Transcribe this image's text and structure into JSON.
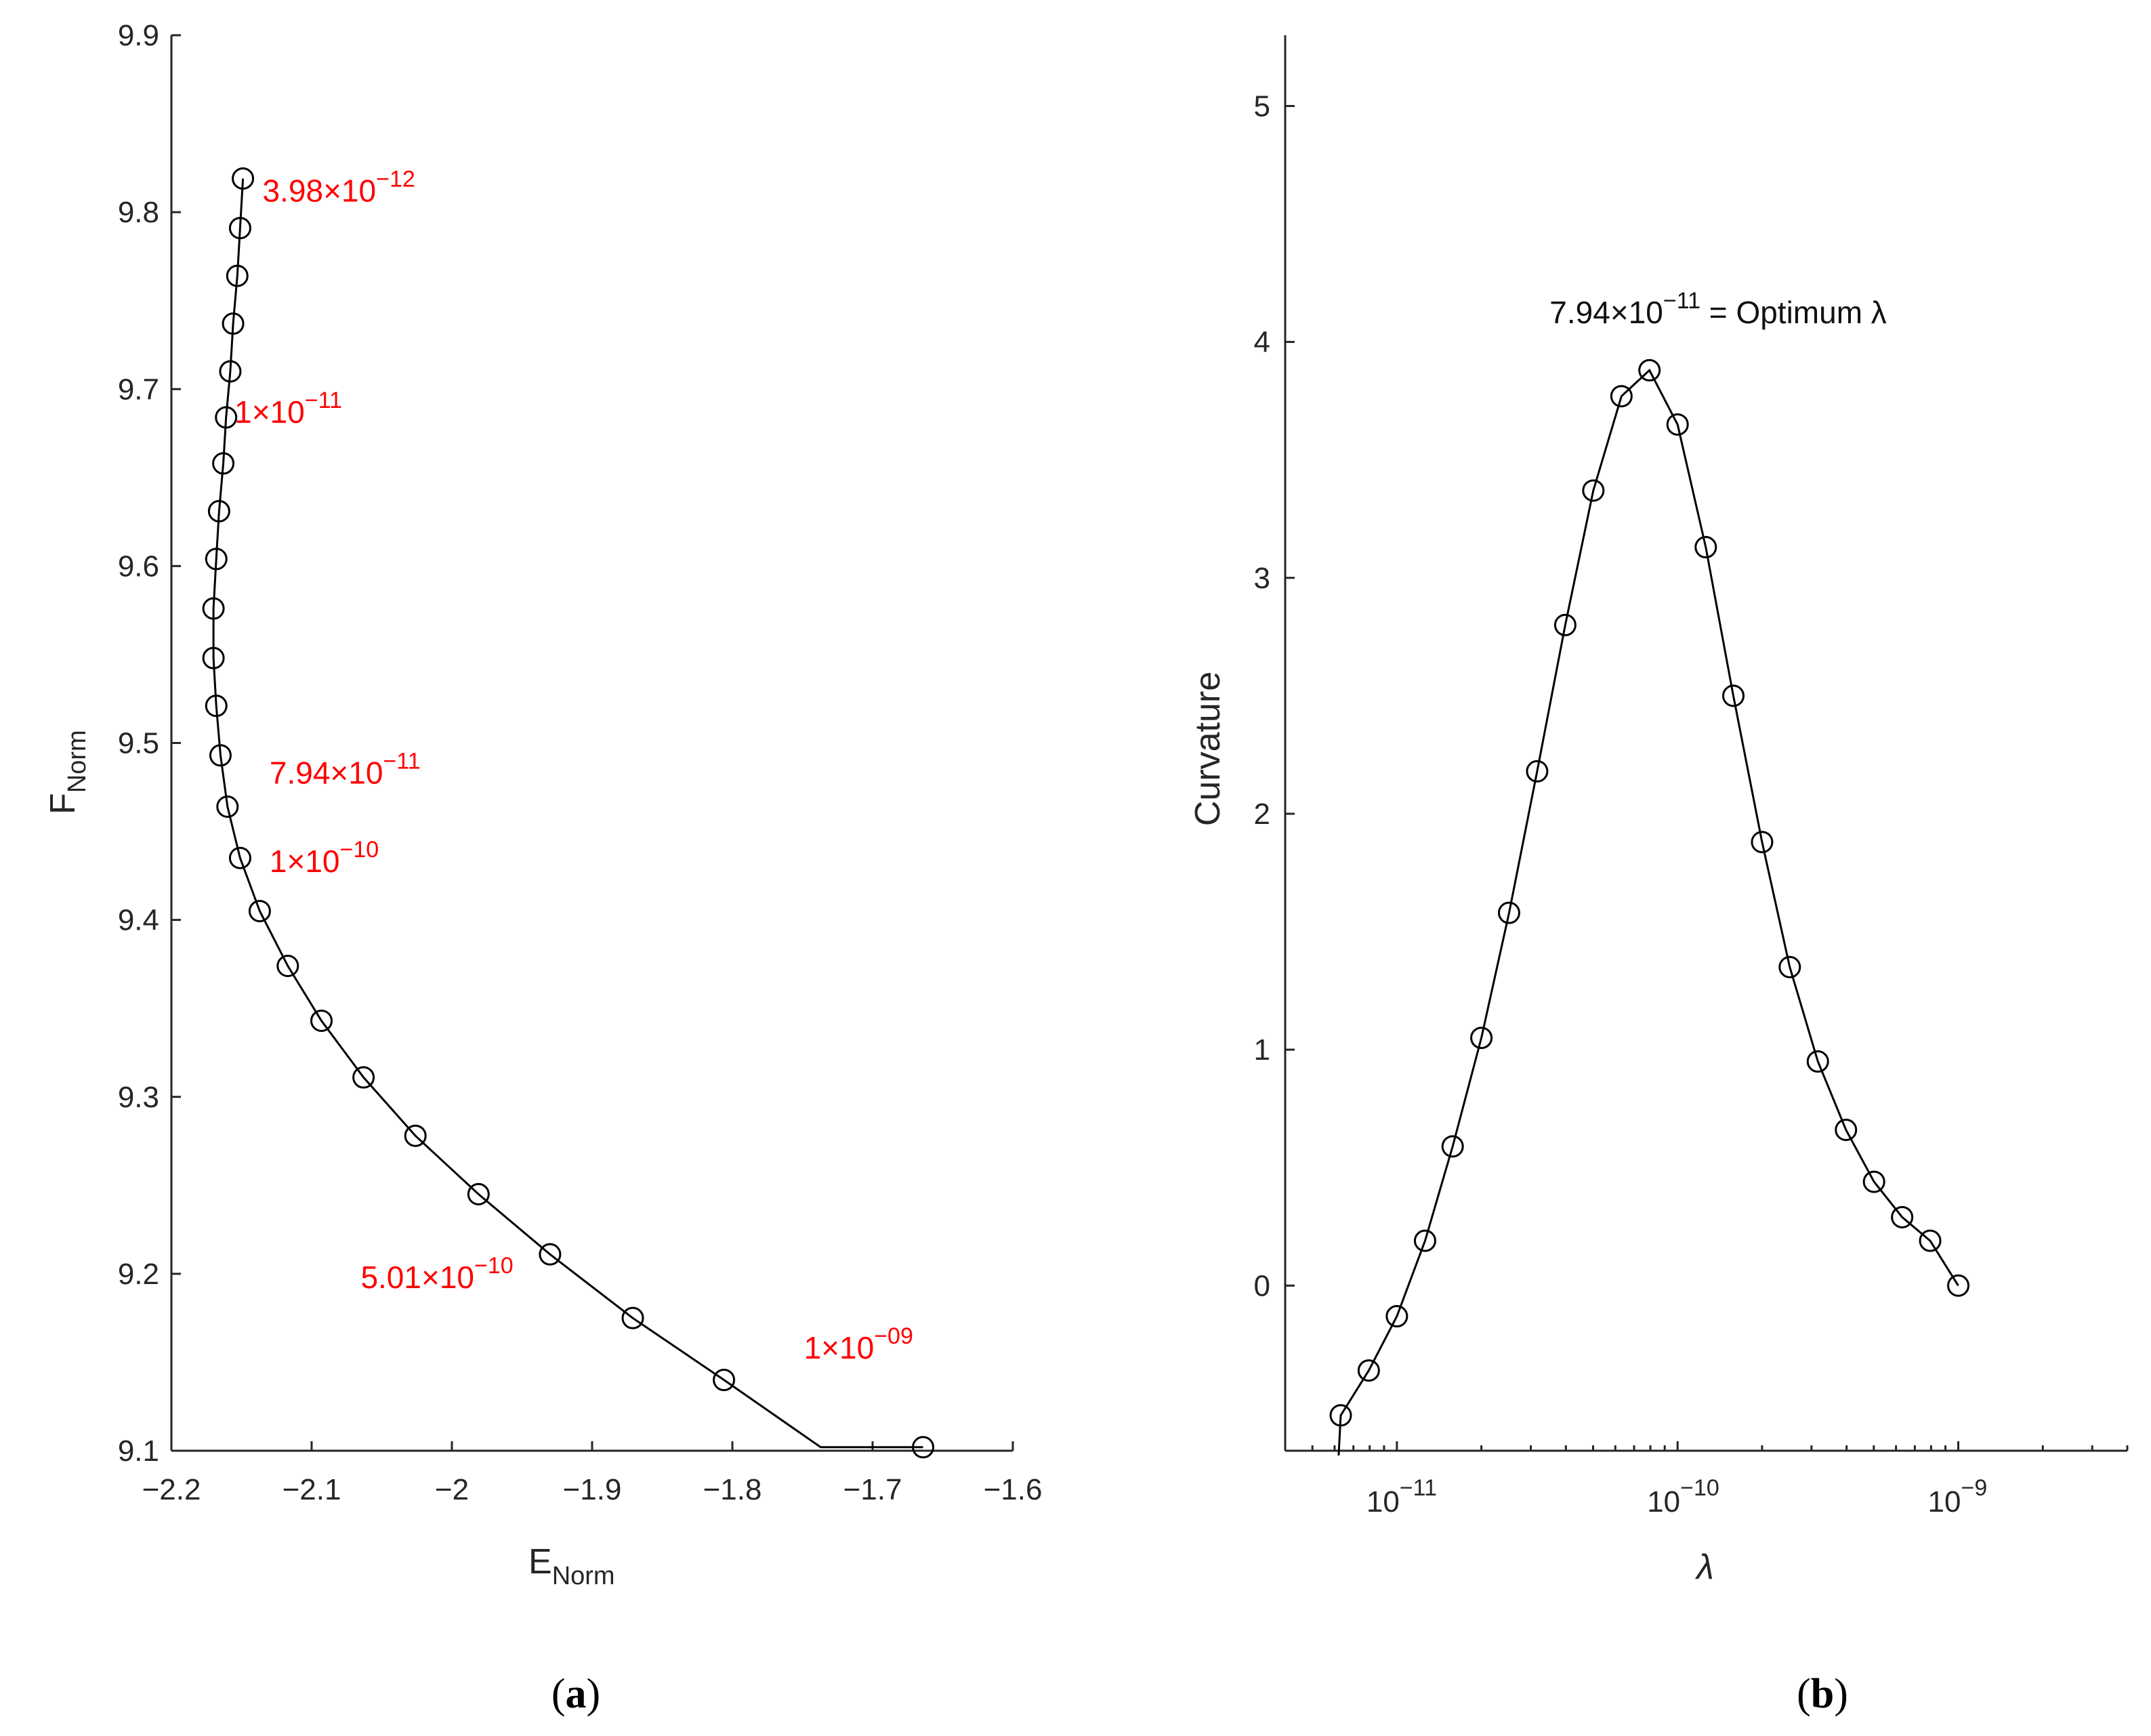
{
  "chart_data": [
    {
      "type": "line",
      "panel_label": "a",
      "xlabel": "E",
      "xlabel_sub": "Norm",
      "ylabel": "F",
      "ylabel_sub": "Norm",
      "xlim": [
        -2.2,
        -1.6
      ],
      "ylim": [
        9.1,
        9.9
      ],
      "xticks": [
        -2.2,
        -2.1,
        -2,
        -1.9,
        -1.8,
        -1.7,
        -1.6
      ],
      "xtick_labels": [
        "−2.2",
        "−2.1",
        "−2",
        "−1.9",
        "−1.8",
        "−1.7",
        "−1.6"
      ],
      "yticks": [
        9.1,
        9.2,
        9.3,
        9.4,
        9.5,
        9.6,
        9.7,
        9.8,
        9.9
      ],
      "ytick_labels": [
        "9.1",
        "9.2",
        "9.3",
        "9.4",
        "9.5",
        "9.6",
        "9.7",
        "9.8",
        "9.9"
      ],
      "x": [
        -2.149,
        -2.151,
        -2.153,
        -2.156,
        -2.158,
        -2.161,
        -2.163,
        -2.166,
        -2.168,
        -2.17,
        -2.17,
        -2.168,
        -2.165,
        -2.16,
        -2.151,
        -2.137,
        -2.117,
        -2.093,
        -2.063,
        -2.026,
        -1.981,
        -1.93,
        -1.871,
        -1.806,
        -1.737,
        -1.664
      ],
      "y": [
        9.819,
        9.791,
        9.764,
        9.737,
        9.71,
        9.684,
        9.658,
        9.631,
        9.604,
        9.576,
        9.548,
        9.521,
        9.493,
        9.464,
        9.435,
        9.405,
        9.374,
        9.343,
        9.311,
        9.278,
        9.245,
        9.211,
        9.175,
        9.14,
        9.102,
        9.102
      ],
      "annotations": [
        {
          "mantissa": "3.98",
          "exponent": "−12",
          "x": -2.135,
          "y": 9.806
        },
        {
          "mantissa": "1",
          "exponent": "−11",
          "x": -2.155,
          "y": 9.681
        },
        {
          "mantissa": "7.94",
          "exponent": "−11",
          "x": -2.13,
          "y": 9.477
        },
        {
          "mantissa": "1",
          "exponent": "−10",
          "x": -2.13,
          "y": 9.427
        },
        {
          "mantissa": "5.01",
          "exponent": "−10",
          "x": -2.065,
          "y": 9.192
        },
        {
          "mantissa": "1",
          "exponent": "−09",
          "x": -1.749,
          "y": 9.152
        }
      ]
    },
    {
      "type": "line",
      "panel_label": "b",
      "xlabel": "λ",
      "ylabel": "Curvature",
      "xscale": "log",
      "xlim": [
        4e-12,
        4e-09
      ],
      "ylim": [
        -0.7,
        5.3
      ],
      "xticks": [
        1e-11,
        1e-10,
        1e-09
      ],
      "xtick_labels": [
        {
          "base": "10",
          "exp": "−11"
        },
        {
          "base": "10",
          "exp": "−10"
        },
        {
          "base": "10",
          "exp": "−9"
        }
      ],
      "yticks": [
        0,
        1,
        2,
        3,
        4,
        5
      ],
      "ytick_labels": [
        "0",
        "1",
        "2",
        "3",
        "4",
        "5"
      ],
      "x": [
        6.31e-12,
        7.94e-12,
        1e-11,
        1.26e-11,
        1.58e-11,
        2e-11,
        2.51e-11,
        3.16e-11,
        3.98e-11,
        5.01e-11,
        6.31e-11,
        7.94e-11,
        1e-10,
        1.26e-10,
        1.58e-10,
        2e-10,
        2.51e-10,
        3.16e-10,
        3.98e-10,
        5.01e-10,
        6.31e-10,
        7.94e-10,
        1e-09
      ],
      "y": [
        -0.55,
        -0.36,
        -0.13,
        0.19,
        0.59,
        1.05,
        1.58,
        2.18,
        2.8,
        3.37,
        3.77,
        3.88,
        3.65,
        3.13,
        2.5,
        1.88,
        1.35,
        0.95,
        0.66,
        0.44,
        0.29,
        0.19,
        0.0
      ],
      "curve_start": {
        "x": 6.2e-12,
        "y": -0.72
      },
      "annotation": {
        "mantissa": "7.94",
        "exponent": "−11",
        "suffix": " = Optimum λ",
        "x": 3.5e-11,
        "y": 4.08
      }
    }
  ]
}
